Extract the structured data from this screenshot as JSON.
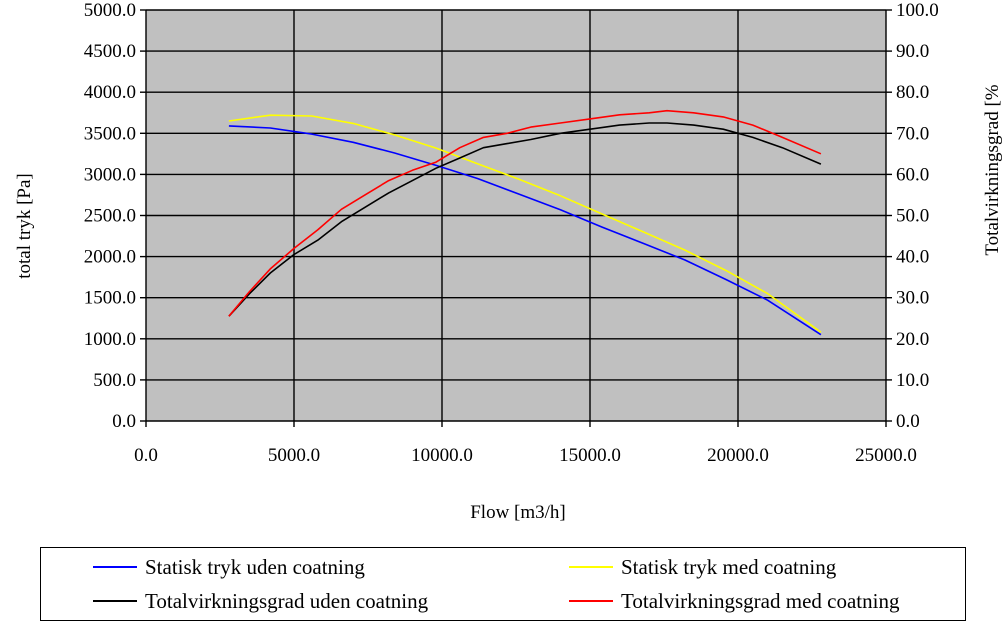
{
  "chart_data": {
    "type": "line",
    "xlabel": "Flow [m3/h]",
    "ylabel": "total tryk [Pa]",
    "y2label": "Totalvirkningsgrad [%",
    "xlim": [
      0,
      25000
    ],
    "ylim": [
      0,
      5000
    ],
    "y2lim": [
      0,
      100
    ],
    "x_ticks": [
      "0.0",
      "5000.0",
      "10000.0",
      "15000.0",
      "20000.0",
      "25000.0"
    ],
    "y_ticks": [
      "0.0",
      "500.0",
      "1000.0",
      "1500.0",
      "2000.0",
      "2500.0",
      "3000.0",
      "3500.0",
      "4000.0",
      "4500.0",
      "5000.0"
    ],
    "y2_ticks": [
      "0.0",
      "10.0",
      "20.0",
      "30.0",
      "40.0",
      "50.0",
      "60.0",
      "70.0",
      "80.0",
      "90.0",
      "100.0"
    ],
    "grid": true,
    "plot_background": "#c0c0c0",
    "legend_position": "bottom",
    "series": [
      {
        "name": "Statisk tryk uden coatning",
        "color": "#0000ff",
        "axis": "left",
        "x": [
          2800,
          4200,
          5600,
          7000,
          8400,
          9800,
          11200,
          12600,
          14000,
          15400,
          16800,
          18200,
          19600,
          21000,
          22800
        ],
        "y": [
          3590,
          3565,
          3490,
          3390,
          3260,
          3110,
          2950,
          2760,
          2570,
          2360,
          2160,
          1960,
          1720,
          1470,
          1050
        ]
      },
      {
        "name": "Statisk tryk med coatning",
        "color": "#ffff00",
        "axis": "left",
        "x": [
          2800,
          4200,
          5600,
          7000,
          8400,
          9800,
          11200,
          12600,
          14000,
          15400,
          16800,
          18200,
          19600,
          21000,
          22800
        ],
        "y": [
          3650,
          3720,
          3710,
          3620,
          3480,
          3320,
          3130,
          2940,
          2740,
          2520,
          2300,
          2080,
          1830,
          1550,
          1080
        ]
      },
      {
        "name": "Totalvirkningsgrad uden coatning",
        "color": "#000000",
        "axis": "right",
        "x": [
          2800,
          3500,
          4200,
          5000,
          5800,
          6600,
          7400,
          8200,
          9000,
          9800,
          10600,
          11400,
          12200,
          13000,
          14000,
          15000,
          16000,
          17000,
          17600,
          18500,
          19500,
          20500,
          21500,
          22800
        ],
        "y": [
          25.5,
          31.0,
          36.0,
          40.5,
          44.0,
          48.5,
          52.0,
          55.5,
          58.5,
          61.5,
          64.0,
          66.5,
          67.5,
          68.5,
          70.0,
          71.0,
          72.0,
          72.5,
          72.5,
          72.0,
          71.0,
          69.0,
          66.5,
          62.5
        ]
      },
      {
        "name": "Totalvirkningsgrad med coatning",
        "color": "#ff0000",
        "axis": "right",
        "x": [
          2800,
          3500,
          4200,
          5000,
          5800,
          6600,
          7400,
          8200,
          9000,
          9800,
          10600,
          11400,
          12200,
          13000,
          14000,
          15000,
          16000,
          17000,
          17600,
          18500,
          19500,
          20500,
          21500,
          22800
        ],
        "y": [
          25.5,
          31.5,
          37.0,
          42.0,
          46.5,
          51.5,
          55.0,
          58.5,
          61.0,
          63.0,
          66.5,
          69.0,
          70.0,
          71.5,
          72.5,
          73.5,
          74.5,
          75.0,
          75.5,
          75.0,
          74.0,
          72.0,
          69.0,
          65.0
        ]
      }
    ]
  }
}
